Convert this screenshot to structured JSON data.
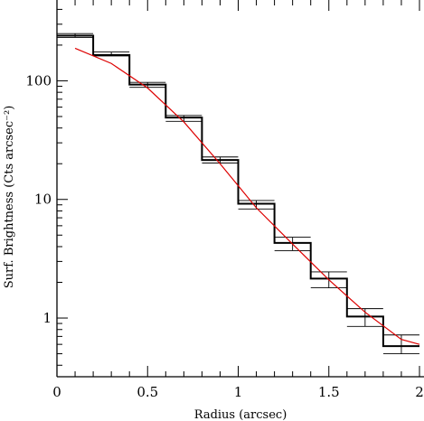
{
  "chart_data": {
    "type": "line",
    "title": "",
    "xlabel": "Radius (arcsec)",
    "ylabel": "Surf. Brightness (Cts arcsec⁻²)",
    "xlim": [
      0,
      2
    ],
    "ylim": [
      0.32,
      480
    ],
    "yscale": "log",
    "grid": false,
    "x_ticks": [
      0,
      0.5,
      1,
      1.5,
      2
    ],
    "x_tick_labels": [
      "0",
      "0.5",
      "1",
      "1.5",
      "2"
    ],
    "y_ticks": [
      1,
      10,
      100
    ],
    "y_tick_labels": [
      "1",
      "10",
      "100"
    ],
    "colors": {
      "histogram": "#000000",
      "model": "#dd0000",
      "errorbars": "#000000"
    },
    "series": [
      {
        "kind": "step-histogram",
        "bin_edges": [
          0,
          0.2,
          0.4,
          0.6,
          0.8,
          1.0,
          1.2,
          1.4,
          1.6,
          1.8,
          2.0
        ],
        "values": [
          240,
          165,
          93,
          49,
          21.5,
          9.2,
          4.3,
          2.15,
          1.03,
          0.58
        ],
        "errors": [
          {
            "x": 0.1,
            "y": 240,
            "lo": 232,
            "hi": 250
          },
          {
            "x": 0.3,
            "y": 168,
            "lo": 162,
            "hi": 175
          },
          {
            "x": 0.5,
            "y": 92,
            "lo": 88,
            "hi": 97
          },
          {
            "x": 0.7,
            "y": 48,
            "lo": 45.5,
            "hi": 51
          },
          {
            "x": 0.9,
            "y": 21.5,
            "lo": 20.3,
            "hi": 22.8
          },
          {
            "x": 1.1,
            "y": 9.0,
            "lo": 8.3,
            "hi": 9.8
          },
          {
            "x": 1.3,
            "y": 4.2,
            "lo": 3.7,
            "hi": 4.8
          },
          {
            "x": 1.5,
            "y": 2.1,
            "lo": 1.8,
            "hi": 2.45
          },
          {
            "x": 1.7,
            "y": 1.0,
            "lo": 0.85,
            "hi": 1.2
          },
          {
            "x": 1.9,
            "y": 0.6,
            "lo": 0.5,
            "hi": 0.72
          }
        ]
      },
      {
        "kind": "model-line",
        "x": [
          0.1,
          0.3,
          0.5,
          0.7,
          0.9,
          1.1,
          1.3,
          1.5,
          1.7,
          1.9,
          2.0
        ],
        "values": [
          188,
          140,
          87,
          45,
          20,
          8.5,
          4.2,
          2.1,
          1.12,
          0.66,
          0.6
        ]
      }
    ]
  }
}
